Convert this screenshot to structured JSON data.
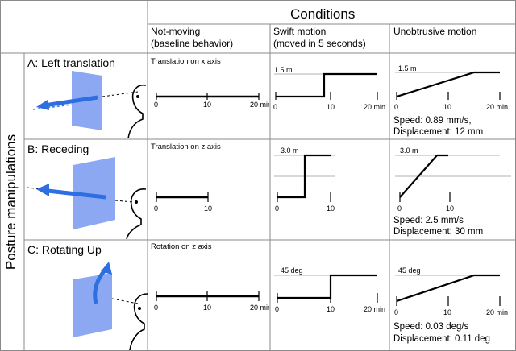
{
  "header": {
    "title": "Conditions",
    "col1_line1": "Not-moving",
    "col1_line2": "(baseline behavior)",
    "col2_line1": "Swift motion",
    "col2_line2": "(moved in 5 seconds)",
    "col3_line1": "Unobtrusive motion"
  },
  "side_label": "Posture manipulations",
  "rows": [
    {
      "label": "A: Left translation",
      "axis_caption": "Translation on x axis",
      "swift_level": "1.5 m",
      "unobtrusive_level": "1.5 m",
      "speed": "Speed: 0.89 mm/s,",
      "displacement": "Displacement: 12 mm",
      "swift_step_time": 9.5,
      "unobtrusive_ramp_end": 16
    },
    {
      "label": "B: Receding",
      "axis_caption": "Translation on z axis",
      "swift_level": "3.0 m",
      "unobtrusive_level": "3.0 m",
      "speed": "Speed: 2.5 mm/s",
      "displacement": "Displacement: 30 mm",
      "swift_step_time": 5,
      "unobtrusive_ramp_end": 8
    },
    {
      "label": "C: Rotating Up",
      "axis_caption": "Rotation on z axis",
      "swift_level": "45 deg",
      "unobtrusive_level": "45 deg",
      "speed": "Speed: 0.03 deg/s",
      "displacement": "Displacement: 0.11 deg",
      "swift_step_time": 10,
      "unobtrusive_ramp_end": 16
    }
  ],
  "ticks": {
    "t0": "0",
    "t10": "10",
    "t20": "20 min",
    "short_t10": "10",
    "short_t20": "20 min"
  },
  "colors": {
    "panel": "#7f9ef2",
    "arrow": "#2e6ee0",
    "grid": "#8a8a8a"
  }
}
